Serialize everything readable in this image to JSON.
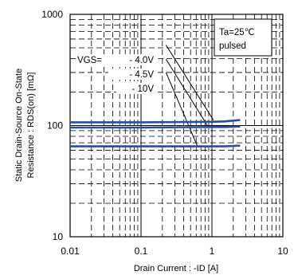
{
  "chart_data": {
    "type": "line",
    "xlabel": "Drain Current : -ID [A]",
    "ylabel_line1": "Static Drain-Source On-State",
    "ylabel_line2": "Resistance : RDS(on) [mΩ]",
    "xscale": "log",
    "yscale": "log",
    "xlim": [
      0.01,
      10
    ],
    "ylim": [
      10,
      1000
    ],
    "x_ticks": [
      {
        "value": 0.01,
        "label": "0.01"
      },
      {
        "value": 0.1,
        "label": "0.1"
      },
      {
        "value": 1,
        "label": "1"
      },
      {
        "value": 10,
        "label": "10"
      }
    ],
    "y_ticks": [
      {
        "value": 10,
        "label": "10"
      },
      {
        "value": 100,
        "label": "100"
      },
      {
        "value": 1000,
        "label": "1000"
      }
    ],
    "grid": true,
    "conditions": [
      "Ta=25℃",
      "pulsed"
    ],
    "series_label_prefix": "VGS=",
    "series": [
      {
        "name": "- 4.0V",
        "color": "#2a4d9b",
        "x": [
          0.01,
          0.1,
          1,
          1.5,
          2.5
        ],
        "y": [
          107,
          107,
          108,
          109,
          112
        ]
      },
      {
        "name": "- 4.5V",
        "color": "#2a4d9b",
        "x": [
          0.01,
          0.1,
          1,
          1.5,
          2.5
        ],
        "y": [
          96,
          96,
          97,
          97,
          98
        ]
      },
      {
        "name": "- 10V",
        "color": "#2a4d9b",
        "x": [
          0.01,
          0.1,
          1,
          1.5,
          2.5
        ],
        "y": [
          65,
          65,
          65,
          65,
          66
        ]
      }
    ],
    "leaders": [
      {
        "label": "- 4.0V",
        "from": [
          0.225,
          530
        ],
        "to": [
          1.05,
          112
        ]
      },
      {
        "label": "- 4.5V",
        "from": [
          0.225,
          395
        ],
        "to": [
          0.88,
          98
        ]
      },
      {
        "label": "- 10V",
        "from": [
          0.225,
          300
        ],
        "to": [
          0.62,
          66
        ]
      }
    ]
  }
}
